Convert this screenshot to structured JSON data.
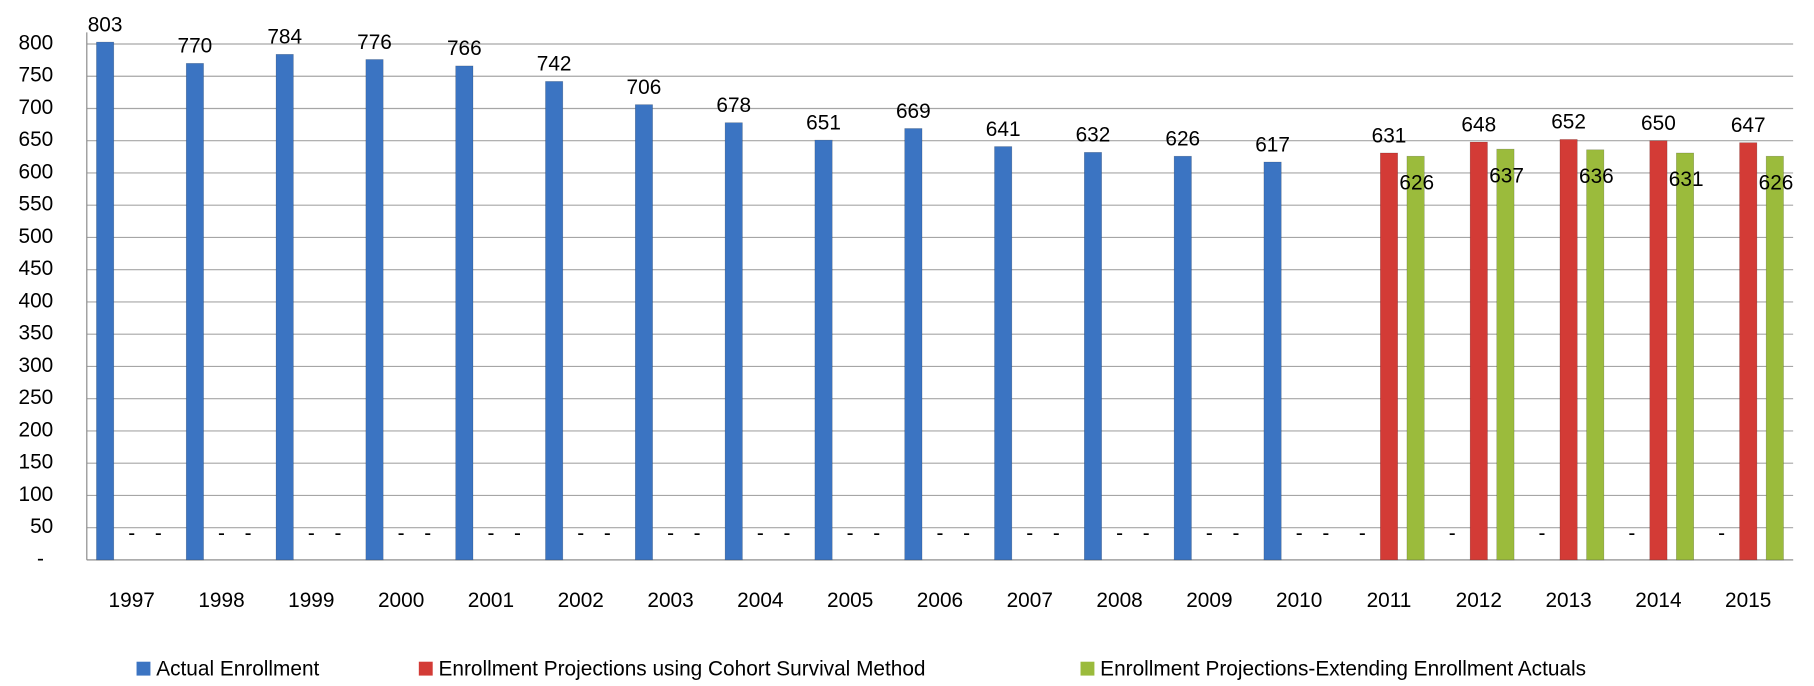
{
  "chart_data": {
    "type": "bar",
    "categories": [
      "1997",
      "1998",
      "1999",
      "2000",
      "2001",
      "2002",
      "2003",
      "2004",
      "2005",
      "2006",
      "2007",
      "2008",
      "2009",
      "2010",
      "2011",
      "2012",
      "2013",
      "2014",
      "2015"
    ],
    "series": [
      {
        "name": "Actual Enrollment",
        "color": "#3b74c2",
        "values": [
          803,
          770,
          784,
          776,
          766,
          742,
          706,
          678,
          651,
          669,
          641,
          632,
          626,
          617,
          0,
          0,
          0,
          0,
          0
        ],
        "value_labels": [
          "803",
          "770",
          "784",
          "776",
          "766",
          "742",
          "706",
          "678",
          "651",
          "669",
          "641",
          "632",
          "626",
          "617",
          "-",
          "-",
          "-",
          "-",
          "-"
        ]
      },
      {
        "name": "Enrollment Projections using Cohort Survival Method",
        "color": "#d33b36",
        "values": [
          0,
          0,
          0,
          0,
          0,
          0,
          0,
          0,
          0,
          0,
          0,
          0,
          0,
          0,
          631,
          648,
          652,
          650,
          647
        ],
        "value_labels": [
          "-",
          "-",
          "-",
          "-",
          "-",
          "-",
          "-",
          "-",
          "-",
          "-",
          "-",
          "-",
          "-",
          "-",
          "631",
          "648",
          "652",
          "650",
          "647"
        ]
      },
      {
        "name": "Enrollment Projections-Extending Enrollment Actuals",
        "color": "#9bbb3c",
        "values": [
          0,
          0,
          0,
          0,
          0,
          0,
          0,
          0,
          0,
          0,
          0,
          0,
          0,
          0,
          626,
          637,
          636,
          631,
          626
        ],
        "value_labels": [
          "-",
          "-",
          "-",
          "-",
          "-",
          "-",
          "-",
          "-",
          "-",
          "-",
          "-",
          "-",
          "-",
          "-",
          "626",
          "637",
          "636",
          "631",
          "626"
        ]
      }
    ],
    "ylim": [
      0,
      818
    ],
    "yticks": [
      {
        "value": 0,
        "label": "-"
      },
      50,
      100,
      150,
      200,
      250,
      300,
      350,
      400,
      450,
      500,
      550,
      600,
      650,
      700,
      750,
      800
    ],
    "grid": true,
    "legend": "bottom"
  }
}
